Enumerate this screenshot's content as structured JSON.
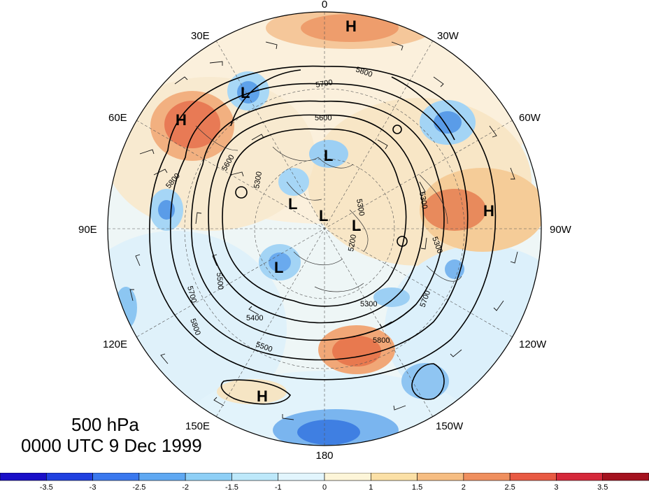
{
  "title": {
    "level": "500 hPa",
    "time": "0000 UTC 9 Dec 1999"
  },
  "longitude_labels": [
    {
      "id": "lon-0",
      "text": "0"
    },
    {
      "id": "lon-30w",
      "text": "30W"
    },
    {
      "id": "lon-60w",
      "text": "60W"
    },
    {
      "id": "lon-90w",
      "text": "90W"
    },
    {
      "id": "lon-120w",
      "text": "120W"
    },
    {
      "id": "lon-150w",
      "text": "150W"
    },
    {
      "id": "lon-180",
      "text": "180"
    },
    {
      "id": "lon-150e",
      "text": "150E"
    },
    {
      "id": "lon-120e",
      "text": "120E"
    },
    {
      "id": "lon-90e",
      "text": "90E"
    },
    {
      "id": "lon-60e",
      "text": "60E"
    },
    {
      "id": "lon-30e",
      "text": "30E"
    }
  ],
  "pressure_centers": [
    {
      "kind": "H",
      "label": "H"
    },
    {
      "kind": "H",
      "label": "H"
    },
    {
      "kind": "H",
      "label": "H"
    },
    {
      "kind": "H",
      "label": "H"
    },
    {
      "kind": "L",
      "label": "L"
    },
    {
      "kind": "L",
      "label": "L"
    },
    {
      "kind": "L",
      "label": "L"
    },
    {
      "kind": "L",
      "label": "L"
    },
    {
      "kind": "L",
      "label": "L"
    },
    {
      "kind": "L",
      "label": "L"
    }
  ],
  "contour_labels": [
    "5200",
    "5300",
    "5300",
    "5400",
    "5500",
    "5500",
    "5600",
    "5600",
    "5700",
    "5700",
    "5700",
    "5800",
    "5800",
    "5800",
    "5800",
    "5300",
    "5300",
    "5300"
  ],
  "colorbar": {
    "colors": [
      "#1a0fc8",
      "#2040e0",
      "#3a78ee",
      "#5fa8f2",
      "#8ecff6",
      "#bde8fa",
      "#e2f5fd",
      "#fdf5d8",
      "#fbe0a6",
      "#f6bd82",
      "#ef8f5e",
      "#e85a43",
      "#d5283a",
      "#a4121f"
    ],
    "tick_labels": [
      "-3.5",
      "-3",
      "-2.5",
      "-2",
      "-1.5",
      "-1",
      "0",
      "1",
      "1.5",
      "2",
      "2.5",
      "3",
      "3.5"
    ]
  },
  "field_colors": {
    "neutral": "#fdf9ee",
    "warm_light": "#f7d7a8",
    "warm_mid": "#ee9d6c",
    "warm_strong": "#e26547",
    "cool_light": "#d8f0fb",
    "cool_mid": "#8fc9f2",
    "cool_strong": "#4d90e6"
  }
}
